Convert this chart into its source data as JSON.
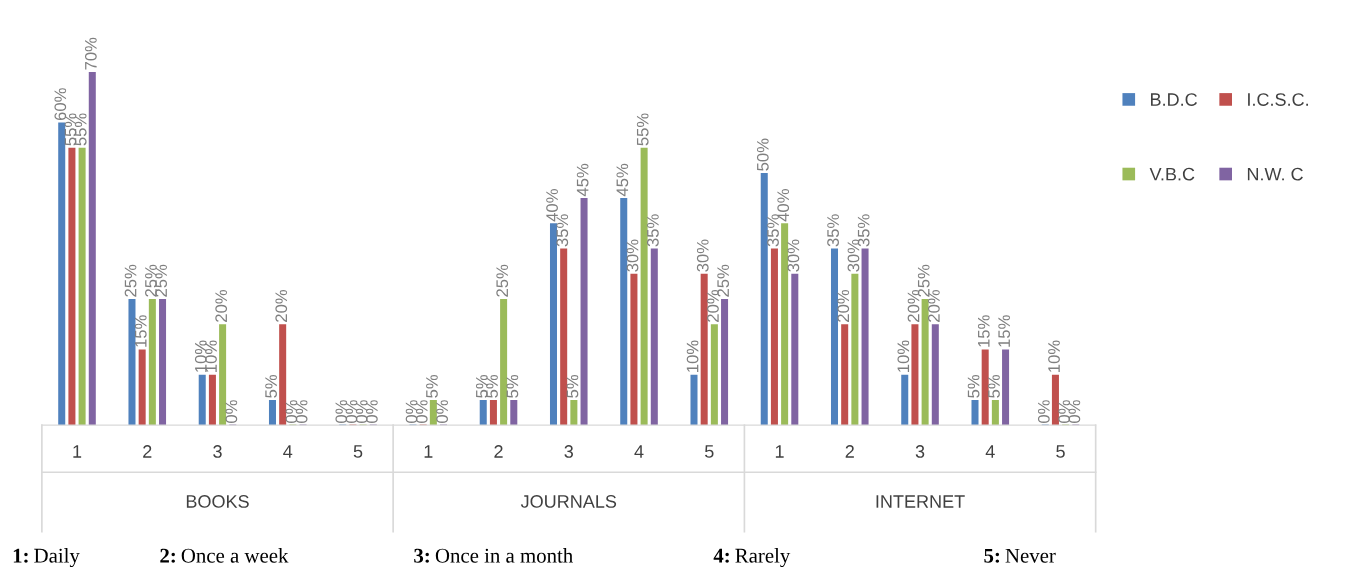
{
  "chart_data": {
    "type": "bar",
    "categories": [
      "1",
      "2",
      "3",
      "4",
      "5",
      "1",
      "2",
      "3",
      "4",
      "5",
      "1",
      "2",
      "3",
      "4",
      "5"
    ],
    "series": [
      {
        "name": "B.D.C",
        "color": "#4f81bd",
        "values": [
          60,
          25,
          10,
          5,
          0,
          0,
          5,
          40,
          45,
          10,
          50,
          35,
          10,
          5,
          0
        ],
        "value_labels": [
          "60%",
          "25%",
          "10%",
          "5%",
          "0%",
          "0%",
          "5%",
          "40%",
          "45%",
          "10%",
          "50%",
          "35%",
          "10%",
          "5%",
          "0%"
        ]
      },
      {
        "name": "I.C.S.C.",
        "color": "#c0504d",
        "values": [
          55,
          15,
          10,
          20,
          0,
          0,
          5,
          35,
          30,
          30,
          35,
          20,
          20,
          15,
          10
        ],
        "value_labels": [
          "55%",
          "15%",
          "10%",
          "20%",
          "0%",
          "0%",
          "5%",
          "35%",
          "30%",
          "30%",
          "35%",
          "20%",
          "20%",
          "15%",
          "10%"
        ]
      },
      {
        "name": "V.B.C",
        "color": "#9bbb59",
        "values": [
          55,
          25,
          20,
          0,
          0,
          5,
          25,
          5,
          55,
          20,
          40,
          30,
          25,
          5,
          0
        ],
        "value_labels": [
          "55%",
          "25%",
          "20%",
          "0%",
          "0%",
          "5%",
          "25%",
          "5%",
          "55%",
          "20%",
          "40%",
          "30%",
          "25%",
          "5%",
          "0%"
        ]
      },
      {
        "name": "N.W. C",
        "color": "#8064a2",
        "values": [
          70,
          25,
          0,
          0,
          0,
          0,
          5,
          45,
          35,
          25,
          30,
          35,
          20,
          15,
          0
        ],
        "value_labels": [
          "70%",
          "25%",
          "0%",
          "0%",
          "0%",
          "0%",
          "5%",
          "45%",
          "35%",
          "25%",
          "30%",
          "35%",
          "20%",
          "15%",
          "0%"
        ]
      }
    ],
    "annotations": [
      "BOOKS",
      "JOURNALS",
      "INTERNET",
      "1: Daily",
      "2: Once a week",
      "3: Once in a month",
      "4: Rarely",
      "5: Never"
    ],
    "legend": "right",
    "grid": false
  }
}
